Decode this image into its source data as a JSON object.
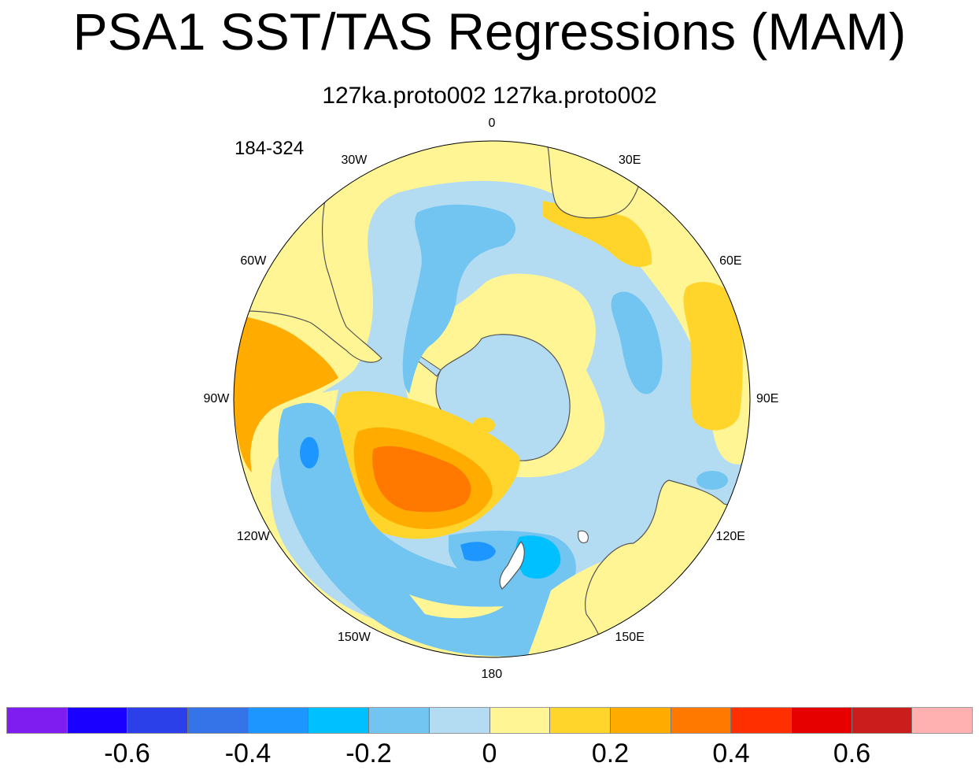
{
  "title": "PSA1 SST/TAS Regressions (MAM)",
  "subtitle": "127ka.proto002  127ka.proto002",
  "period": "184-324",
  "longitude_labels": [
    "0",
    "30E",
    "60E",
    "90E",
    "120E",
    "150E",
    "180",
    "150W",
    "120W",
    "90W",
    "60W",
    "30W"
  ],
  "colorbar": {
    "colors": [
      "#7f1cf0",
      "#1a00ff",
      "#2b40e8",
      "#3573e8",
      "#1e96ff",
      "#00c0ff",
      "#72c5f0",
      "#b3dcf2",
      "#fff595",
      "#ffd42b",
      "#ffab00",
      "#ff7800",
      "#ff2f00",
      "#e60000",
      "#cc1d1d",
      "#ffb0b0"
    ],
    "labels": [
      "-0.6",
      "-0.4",
      "-0.2",
      "0",
      "0.2",
      "0.4",
      "0.6"
    ]
  }
}
